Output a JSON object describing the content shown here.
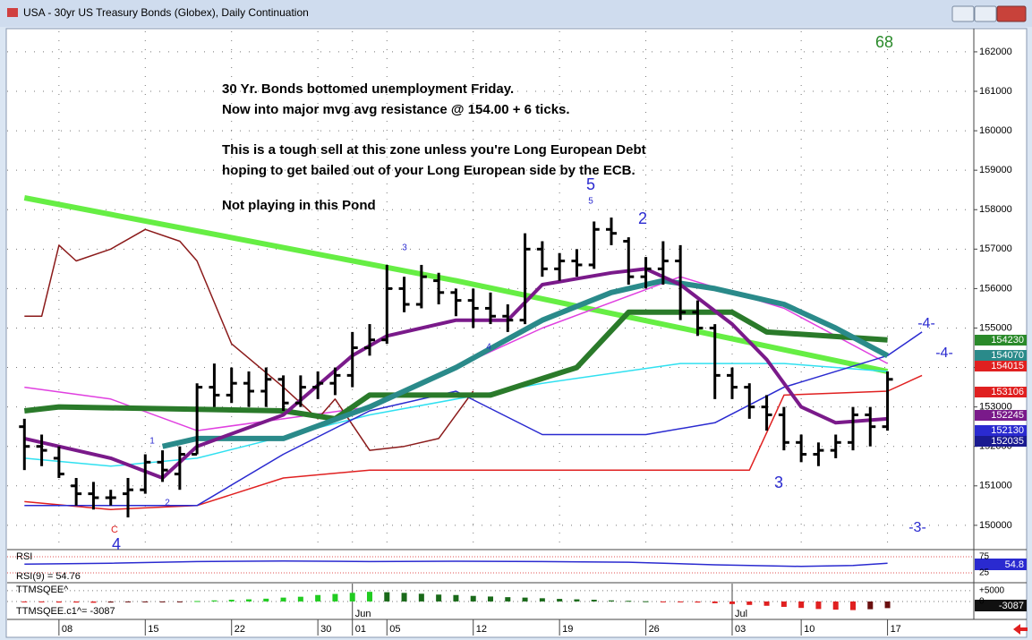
{
  "window_title": "USA - 30yr US Treasury Bonds (Globex), Daily Continuation",
  "chart_data": {
    "type": "ohlc",
    "annotations": [
      "30 Yr. Bonds bottomed unemployment Friday.",
      "Now into major mvg avg resistance @ 154.00 + 6 ticks.",
      "This is a tough sell at this zone unless you're Long European Debt",
      "hoping to get bailed out of your Long European side by the ECB.",
      "Not playing in this Pond"
    ],
    "wave_labels": [
      {
        "text": "68",
        "color": "#2a8a2a"
      },
      {
        "text": "5",
        "color": "#2a2ad0"
      },
      {
        "text": "5",
        "color": "#2a2ad0"
      },
      {
        "text": "2",
        "color": "#2a2ad0"
      },
      {
        "text": "3",
        "color": "#2a2ad0"
      },
      {
        "text": "3",
        "color": "#2a2ad0"
      },
      {
        "text": "4",
        "color": "#2a2ad0"
      },
      {
        "text": "C",
        "color": "#e02020"
      },
      {
        "text": "-4-",
        "color": "#2a2ad0"
      },
      {
        "text": "-4-",
        "color": "#2a2ad0"
      },
      {
        "text": "-3-",
        "color": "#2a2ad0"
      },
      {
        "text": "1",
        "color": "#2a2ad0"
      },
      {
        "text": "2",
        "color": "#2a2ad0"
      },
      {
        "text": "4",
        "color": "#2a2ad0"
      }
    ],
    "xticks": [
      {
        "value": 2,
        "label": "08"
      },
      {
        "value": 7,
        "label": "15"
      },
      {
        "value": 12,
        "label": "22"
      },
      {
        "value": 17,
        "label": "30"
      },
      {
        "value": 19,
        "label": "01"
      },
      {
        "value": 21,
        "label": "05"
      },
      {
        "value": 26,
        "label": "12"
      },
      {
        "value": 31,
        "label": "19"
      },
      {
        "value": 36,
        "label": "26"
      },
      {
        "value": 41,
        "label": "03"
      },
      {
        "value": 45,
        "label": "10"
      },
      {
        "value": 50,
        "label": "17"
      }
    ],
    "month_labels": [
      {
        "value": 19,
        "label": "Jun"
      },
      {
        "value": 41,
        "label": "Jul"
      }
    ],
    "xlim": [
      -1,
      55
    ],
    "ylim": [
      149430,
      162520
    ],
    "yticks": [
      150000,
      151000,
      152000,
      153000,
      154000,
      155000,
      156000,
      157000,
      158000,
      159000,
      160000,
      161000,
      162000
    ],
    "grid": true,
    "ohlc": [
      [
        152500,
        152700,
        151400,
        152000
      ],
      [
        152000,
        152300,
        151500,
        151900
      ],
      [
        151700,
        152000,
        151200,
        151300
      ],
      [
        151000,
        151200,
        150500,
        150800
      ],
      [
        150800,
        151100,
        150400,
        150700
      ],
      [
        150700,
        150900,
        150500,
        150700
      ],
      [
        150800,
        151200,
        150200,
        150900
      ],
      [
        150900,
        151800,
        150800,
        151600
      ],
      [
        151600,
        151900,
        151100,
        151400
      ],
      [
        151300,
        152000,
        150900,
        151800
      ],
      [
        151800,
        153600,
        151800,
        153500
      ],
      [
        153500,
        154100,
        153000,
        153300
      ],
      [
        153300,
        154000,
        153100,
        153600
      ],
      [
        153600,
        153900,
        153000,
        153400
      ],
      [
        153400,
        154000,
        153000,
        153700
      ],
      [
        153700,
        153800,
        152900,
        153100
      ],
      [
        153100,
        153800,
        153000,
        153500
      ],
      [
        153500,
        153900,
        153200,
        153600
      ],
      [
        153600,
        154000,
        153300,
        153800
      ],
      [
        153800,
        154900,
        153500,
        154500
      ],
      [
        154500,
        155100,
        154300,
        154700
      ],
      [
        154700,
        156600,
        154600,
        156000
      ],
      [
        156000,
        156300,
        155400,
        155600
      ],
      [
        155600,
        156600,
        155500,
        156300
      ],
      [
        156200,
        156400,
        155600,
        155900
      ],
      [
        155900,
        156000,
        155300,
        155700
      ],
      [
        155700,
        156000,
        155000,
        155500
      ],
      [
        155500,
        155900,
        155100,
        155300
      ],
      [
        155300,
        155600,
        154900,
        155200
      ],
      [
        155200,
        157400,
        155100,
        157000
      ],
      [
        157000,
        157200,
        156300,
        156500
      ],
      [
        156500,
        156900,
        156200,
        156700
      ],
      [
        156700,
        157000,
        156300,
        156600
      ],
      [
        156600,
        157700,
        156500,
        157500
      ],
      [
        157500,
        157800,
        157100,
        157400
      ],
      [
        157200,
        157300,
        156100,
        156300
      ],
      [
        156300,
        156800,
        156000,
        156500
      ],
      [
        156500,
        157200,
        156100,
        156700
      ],
      [
        156700,
        157100,
        155200,
        155400
      ],
      [
        155400,
        155700,
        154800,
        155000
      ],
      [
        155000,
        155100,
        153200,
        153800
      ],
      [
        153800,
        154000,
        153200,
        153500
      ],
      [
        153500,
        153600,
        152700,
        153000
      ],
      [
        153000,
        153300,
        152400,
        152800
      ],
      [
        152800,
        153000,
        151900,
        152100
      ],
      [
        152100,
        152300,
        151600,
        151800
      ],
      [
        151800,
        152100,
        151500,
        151900
      ],
      [
        151900,
        152300,
        151700,
        152100
      ],
      [
        152100,
        153000,
        151900,
        152800
      ],
      [
        152800,
        153000,
        152000,
        152500
      ],
      [
        152500,
        153900,
        152400,
        153700
      ]
    ],
    "series": [
      {
        "color": "#66ee44",
        "width": 6,
        "x": [
          0,
          25,
          50
        ],
        "values": [
          158300,
          156200,
          153900
        ]
      },
      {
        "color": "#e040e0",
        "width": 1.5,
        "x": [
          0,
          5,
          10,
          20,
          30,
          38,
          44,
          50
        ],
        "values": [
          153500,
          153200,
          152400,
          153000,
          155000,
          156300,
          155500,
          154100
        ]
      },
      {
        "color": "#30e0f0",
        "width": 1.5,
        "x": [
          0,
          5,
          10,
          20,
          30,
          38,
          44,
          50
        ],
        "values": [
          151700,
          151500,
          151700,
          152800,
          153600,
          154100,
          154100,
          153900
        ]
      },
      {
        "color": "#8b1a1a",
        "width": 1.5,
        "x": [
          0,
          1,
          2,
          3,
          5,
          7,
          9,
          10,
          12,
          15,
          17,
          18,
          20,
          22,
          24,
          26
        ],
        "values": [
          155300,
          155300,
          157100,
          156700,
          157000,
          157500,
          157200,
          156700,
          154600,
          153500,
          152700,
          153200,
          151900,
          152000,
          152200,
          153400
        ]
      },
      {
        "color": "#e02020",
        "width": 1.5,
        "x": [
          0,
          5,
          10,
          15,
          20,
          40,
          42,
          44,
          50,
          52
        ],
        "values": [
          150600,
          150400,
          150500,
          151200,
          151400,
          151400,
          151400,
          153300,
          153400,
          153800
        ]
      },
      {
        "color": "#2a2ad0",
        "width": 1.5,
        "x": [
          0,
          10,
          15,
          20,
          25,
          30,
          36,
          40,
          44,
          50,
          52
        ],
        "values": [
          150500,
          150500,
          151800,
          152900,
          153400,
          152300,
          152300,
          152600,
          153500,
          154300,
          154900
        ]
      },
      {
        "color": "#2a7a2a",
        "width": 6,
        "x": [
          0,
          2,
          15,
          18,
          20,
          27,
          32,
          35,
          41,
          43,
          50
        ],
        "values": [
          152900,
          153000,
          152900,
          152700,
          153300,
          153300,
          154000,
          155400,
          155400,
          154900,
          154700
        ]
      },
      {
        "color": "#2a8a8a",
        "width": 6,
        "x": [
          8,
          10,
          15,
          20,
          25,
          30,
          34,
          37,
          40,
          44,
          47,
          50
        ],
        "values": [
          152000,
          152200,
          152200,
          153000,
          154000,
          155200,
          155900,
          156200,
          156000,
          155600,
          155000,
          154300
        ]
      },
      {
        "color": "#7a1a8a",
        "width": 4,
        "x": [
          0,
          5,
          8,
          10,
          15,
          19,
          21,
          25,
          28,
          30,
          34,
          36,
          38,
          41,
          43,
          45,
          47,
          50
        ],
        "values": [
          152200,
          151700,
          151200,
          152000,
          152800,
          154300,
          154800,
          155200,
          155200,
          156100,
          156400,
          156500,
          156100,
          155100,
          154200,
          153000,
          152600,
          152700
        ]
      }
    ],
    "price_labels": [
      {
        "text": "154230",
        "color": "#2a8a2a"
      },
      {
        "text": "154070",
        "color": "#2a8a8a"
      },
      {
        "text": "154015",
        "color": "#e02020"
      },
      {
        "text": "153106",
        "color": "#e02020"
      },
      {
        "text": "152245",
        "color": "#7a1a8a"
      },
      {
        "text": "152130",
        "color": "#2a2ad0"
      },
      {
        "text": "152035",
        "color": "#1a1a90"
      }
    ],
    "rsi": {
      "name": "RSI",
      "legend": "RSI(9) =    54.76",
      "ylim": [
        -3,
        89
      ],
      "yticks": [
        75,
        25
      ],
      "last_label": "54.8",
      "color": "#2a2ad0",
      "x": [
        0,
        5,
        10,
        15,
        20,
        25,
        30,
        35,
        40,
        45,
        48,
        50
      ],
      "values": [
        52,
        55,
        60,
        62,
        60,
        61,
        60,
        58,
        50,
        45,
        48,
        55
      ]
    },
    "ttm": {
      "name": "TTMSQEE^",
      "legend": "TTMSQEE.c1^=   -3087",
      "ylim": [
        -7500,
        8300
      ],
      "yticks": [
        {
          "value": 5000,
          "label": "+5000"
        },
        0
      ],
      "last_label": "-3087",
      "values": [
        -300,
        -400,
        -500,
        -500,
        -600,
        -500,
        -400,
        -300,
        -200,
        -100,
        200,
        500,
        800,
        1000,
        1300,
        1800,
        2200,
        3000,
        3500,
        4000,
        4500,
        4300,
        4000,
        3600,
        3200,
        3000,
        2600,
        2300,
        2000,
        1800,
        1500,
        1200,
        1000,
        800,
        500,
        300,
        100,
        -100,
        -300,
        -500,
        -800,
        -1200,
        -1600,
        -2000,
        -2500,
        -3000,
        -3500,
        -3800,
        -4000,
        -3600,
        -3087
      ]
    }
  }
}
